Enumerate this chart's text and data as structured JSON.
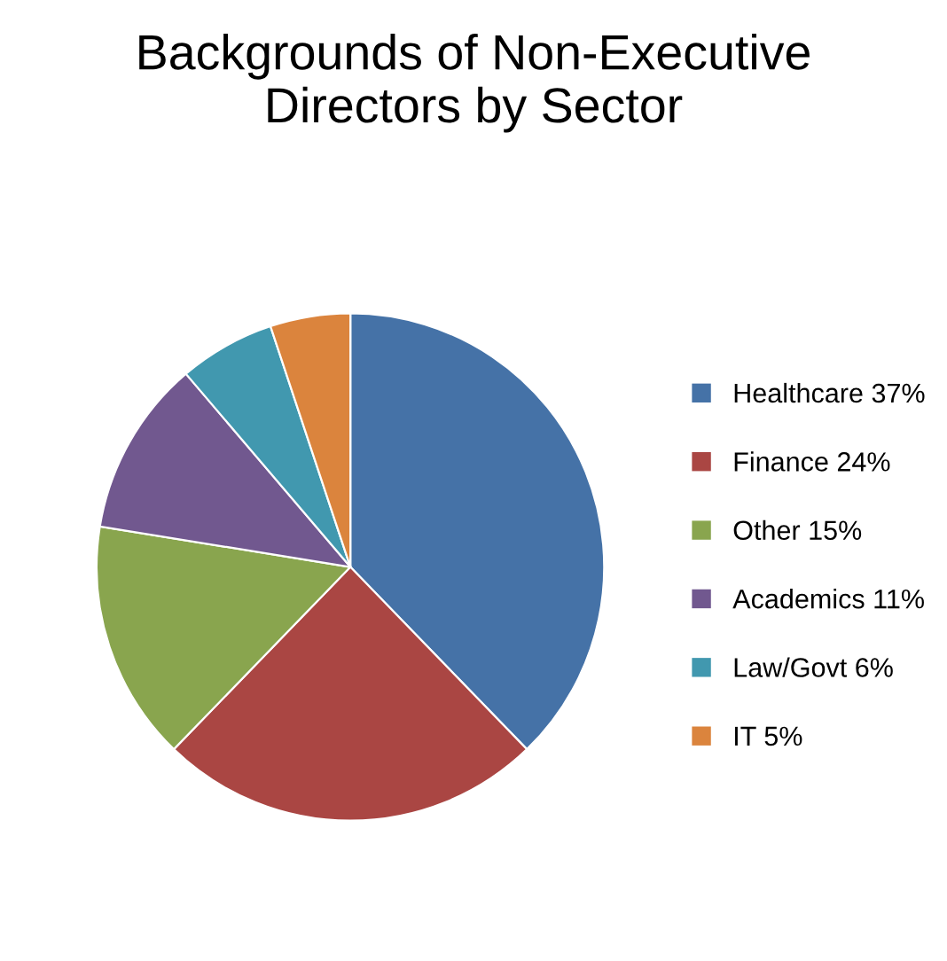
{
  "chart_data": {
    "type": "pie",
    "title": "Backgrounds of Non-Executive\nDirectors by Sector",
    "categories": [
      "Healthcare",
      "Finance",
      "Other",
      "Academics",
      "Law/Govt",
      "IT"
    ],
    "values": [
      37,
      24,
      15,
      11,
      6,
      5
    ],
    "value_labels": [
      "37%",
      "24%",
      "15%",
      "11%",
      "6%",
      "5%"
    ],
    "colors": [
      "#4572a7",
      "#aa4643",
      "#89a54e",
      "#71588f",
      "#4198af",
      "#db843d"
    ],
    "legend": "right"
  }
}
